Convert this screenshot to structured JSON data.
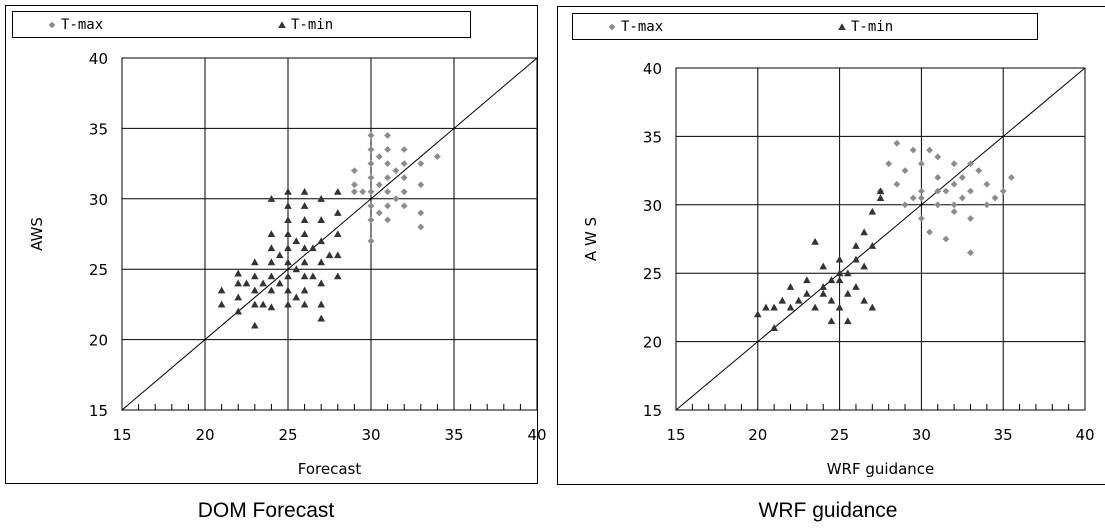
{
  "chart_data": [
    {
      "type": "scatter",
      "caption": "DOM Forecast",
      "xlabel": "Forecast",
      "ylabel": "AWS",
      "xlim": [
        15,
        40
      ],
      "ylim": [
        15,
        40
      ],
      "xticks": [
        15,
        20,
        25,
        30,
        35,
        40
      ],
      "yticks": [
        15,
        20,
        25,
        30,
        35,
        40
      ],
      "grid": true,
      "diagonal": true,
      "legend_position": "top",
      "series": [
        {
          "name": "T-max",
          "color": "#8c8c8c",
          "marker": "diamond",
          "points": [
            [
              29,
              30.5
            ],
            [
              29,
              31
            ],
            [
              29,
              32
            ],
            [
              29.5,
              30.5
            ],
            [
              30,
              27
            ],
            [
              30,
              28.5
            ],
            [
              30,
              29.5
            ],
            [
              30,
              30.5
            ],
            [
              30,
              31.5
            ],
            [
              30,
              32.5
            ],
            [
              30,
              33.5
            ],
            [
              30,
              34.5
            ],
            [
              30.5,
              29
            ],
            [
              30.5,
              31
            ],
            [
              30.5,
              33
            ],
            [
              31,
              28.5
            ],
            [
              31,
              29.5
            ],
            [
              31,
              30.5
            ],
            [
              31,
              31.5
            ],
            [
              31,
              32.5
            ],
            [
              31,
              33.5
            ],
            [
              31,
              34.5
            ],
            [
              31.5,
              30
            ],
            [
              31.5,
              32
            ],
            [
              32,
              29.5
            ],
            [
              32,
              30.5
            ],
            [
              32,
              31.5
            ],
            [
              32,
              32.5
            ],
            [
              32,
              33.5
            ],
            [
              33,
              28
            ],
            [
              33,
              29
            ],
            [
              33,
              31
            ],
            [
              33,
              32.5
            ],
            [
              34,
              33
            ]
          ]
        },
        {
          "name": "T-min",
          "color": "#333333",
          "marker": "triangle",
          "points": [
            [
              21,
              22.5
            ],
            [
              21,
              23.5
            ],
            [
              22,
              22
            ],
            [
              22,
              23
            ],
            [
              22,
              24
            ],
            [
              22,
              24.7
            ],
            [
              22.5,
              24
            ],
            [
              23,
              21
            ],
            [
              23,
              22.5
            ],
            [
              23,
              23.5
            ],
            [
              23,
              24.5
            ],
            [
              23,
              25.5
            ],
            [
              23.5,
              22.5
            ],
            [
              23.5,
              24
            ],
            [
              24,
              22.3
            ],
            [
              24,
              23.5
            ],
            [
              24,
              24.5
            ],
            [
              24,
              25.5
            ],
            [
              24,
              26.5
            ],
            [
              24,
              27.5
            ],
            [
              24,
              30
            ],
            [
              24.5,
              24
            ],
            [
              24.5,
              26
            ],
            [
              25,
              22.5
            ],
            [
              25,
              23.5
            ],
            [
              25,
              24.5
            ],
            [
              25,
              25.5
            ],
            [
              25,
              26.5
            ],
            [
              25,
              27.5
            ],
            [
              25,
              28.5
            ],
            [
              25,
              29.5
            ],
            [
              25,
              30.5
            ],
            [
              25.5,
              23
            ],
            [
              25.5,
              25
            ],
            [
              25.5,
              27
            ],
            [
              26,
              22.5
            ],
            [
              26,
              23.5
            ],
            [
              26,
              24.5
            ],
            [
              26,
              25.5
            ],
            [
              26,
              26.5
            ],
            [
              26,
              27.5
            ],
            [
              26,
              28.5
            ],
            [
              26,
              29.5
            ],
            [
              26,
              30.5
            ],
            [
              26.5,
              24.5
            ],
            [
              26.5,
              26.5
            ],
            [
              27,
              21.5
            ],
            [
              27,
              22.5
            ],
            [
              27,
              24
            ],
            [
              27,
              25.5
            ],
            [
              27,
              27
            ],
            [
              27,
              28.5
            ],
            [
              27,
              30
            ],
            [
              27.5,
              26
            ],
            [
              28,
              24.5
            ],
            [
              28,
              26
            ],
            [
              28,
              27.5
            ],
            [
              28,
              29
            ],
            [
              28,
              30.5
            ]
          ]
        }
      ]
    },
    {
      "type": "scatter",
      "caption": "WRF guidance",
      "xlabel": "WRF guidance",
      "ylabel": "A W S",
      "xlim": [
        15,
        40
      ],
      "ylim": [
        15,
        40
      ],
      "xticks": [
        15,
        20,
        25,
        30,
        35,
        40
      ],
      "yticks": [
        15,
        20,
        25,
        30,
        35,
        40
      ],
      "grid": true,
      "diagonal": true,
      "legend_position": "top",
      "series": [
        {
          "name": "T-max",
          "color": "#8c8c8c",
          "marker": "diamond",
          "points": [
            [
              27.5,
              31
            ],
            [
              28,
              33
            ],
            [
              28.5,
              34.5
            ],
            [
              28.5,
              31.5
            ],
            [
              29,
              30
            ],
            [
              29,
              32.5
            ],
            [
              29.5,
              34
            ],
            [
              29.5,
              30.5
            ],
            [
              30,
              29
            ],
            [
              30,
              31
            ],
            [
              30,
              33
            ],
            [
              30.5,
              34
            ],
            [
              30.5,
              28
            ],
            [
              31,
              30
            ],
            [
              31,
              32
            ],
            [
              31,
              33.5
            ],
            [
              31.5,
              27.5
            ],
            [
              31.5,
              31
            ],
            [
              32,
              29.5
            ],
            [
              32,
              31.5
            ],
            [
              32,
              33
            ],
            [
              32.5,
              30.5
            ],
            [
              32.5,
              32
            ],
            [
              33,
              29
            ],
            [
              33,
              31
            ],
            [
              33,
              26.5
            ],
            [
              33.5,
              32.5
            ],
            [
              34,
              30
            ],
            [
              34,
              31.5
            ],
            [
              34.5,
              30.5
            ],
            [
              35,
              31
            ],
            [
              35.5,
              32
            ],
            [
              30,
              30.5
            ],
            [
              31,
              31
            ],
            [
              32,
              30
            ],
            [
              33,
              33
            ]
          ]
        },
        {
          "name": "T-min",
          "color": "#333333",
          "marker": "triangle",
          "points": [
            [
              20,
              22
            ],
            [
              20.5,
              22.5
            ],
            [
              21,
              21
            ],
            [
              21,
              22.5
            ],
            [
              21.5,
              23
            ],
            [
              22,
              22.5
            ],
            [
              22,
              24
            ],
            [
              22.5,
              23
            ],
            [
              23,
              23.5
            ],
            [
              23,
              24.5
            ],
            [
              23.5,
              27.3
            ],
            [
              23.5,
              22.5
            ],
            [
              24,
              24
            ],
            [
              24,
              25.5
            ],
            [
              24.5,
              23
            ],
            [
              24.5,
              21.5
            ],
            [
              25,
              24.5
            ],
            [
              25,
              22.5
            ],
            [
              25,
              26
            ],
            [
              25.5,
              25
            ],
            [
              25.5,
              23.5
            ],
            [
              25.5,
              21.5
            ],
            [
              26,
              24
            ],
            [
              26,
              26
            ],
            [
              26,
              27
            ],
            [
              26.5,
              25.5
            ],
            [
              26.5,
              23
            ],
            [
              26.5,
              28
            ],
            [
              27,
              27
            ],
            [
              27,
              29.5
            ],
            [
              27,
              22.5
            ],
            [
              27.5,
              30.5
            ],
            [
              27.5,
              31
            ],
            [
              24,
              23.5
            ],
            [
              24.5,
              24.5
            ],
            [
              25,
              25
            ]
          ]
        }
      ]
    }
  ]
}
